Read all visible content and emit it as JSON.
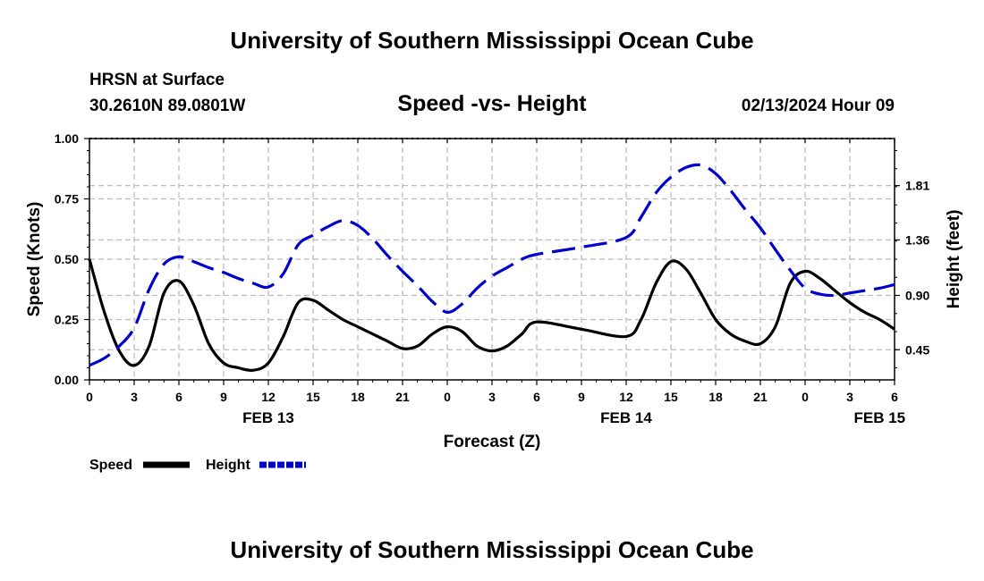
{
  "header": {
    "title": "University of Southern Mississippi Ocean Cube",
    "station": "HRSN at Surface",
    "coords": "30.2610N  89.0801W",
    "plot_title": "Speed -vs- Height",
    "run_time": "02/13/2024 Hour 09"
  },
  "footer": {
    "title": "University of Southern Mississippi Ocean Cube"
  },
  "chart_data": {
    "type": "line",
    "title": "Speed -vs- Height",
    "xlabel": "Forecast (Z)",
    "ylabel_left": "Speed (Knots)",
    "ylabel_right": "Height (feet)",
    "x_range_hours": [
      0,
      54
    ],
    "ylim_left": [
      0,
      1
    ],
    "ylim_right": [
      0.2,
      2.2
    ],
    "x_ticks": [
      {
        "h": 0,
        "label": "0"
      },
      {
        "h": 3,
        "label": "3"
      },
      {
        "h": 6,
        "label": "6"
      },
      {
        "h": 9,
        "label": "9"
      },
      {
        "h": 12,
        "label": "12"
      },
      {
        "h": 15,
        "label": "15"
      },
      {
        "h": 18,
        "label": "18"
      },
      {
        "h": 21,
        "label": "21"
      },
      {
        "h": 24,
        "label": "0"
      },
      {
        "h": 27,
        "label": "3"
      },
      {
        "h": 30,
        "label": "6"
      },
      {
        "h": 33,
        "label": "9"
      },
      {
        "h": 36,
        "label": "12"
      },
      {
        "h": 39,
        "label": "15"
      },
      {
        "h": 42,
        "label": "18"
      },
      {
        "h": 45,
        "label": "21"
      },
      {
        "h": 48,
        "label": "0"
      },
      {
        "h": 51,
        "label": "3"
      },
      {
        "h": 54,
        "label": "6"
      }
    ],
    "date_labels": [
      {
        "h": 12,
        "label": "FEB 13"
      },
      {
        "h": 36,
        "label": "FEB 14"
      },
      {
        "h": 53,
        "label": "FEB 15"
      }
    ],
    "y_left_ticks": [
      {
        "v": 0,
        "label": "0.00"
      },
      {
        "v": 0.25,
        "label": "0.25"
      },
      {
        "v": 0.5,
        "label": "0.50"
      },
      {
        "v": 0.75,
        "label": "0.75"
      },
      {
        "v": 1,
        "label": "1.00"
      }
    ],
    "y_right_ticks": [
      {
        "v": 0.45,
        "label": "0.45"
      },
      {
        "v": 0.9,
        "label": "0.90"
      },
      {
        "v": 1.36,
        "label": "1.36"
      },
      {
        "v": 1.81,
        "label": "1.81"
      }
    ],
    "series": [
      {
        "name": "Speed",
        "axis": "left",
        "color": "#000000",
        "style": "solid",
        "x": [
          0,
          1,
          2,
          3,
          4,
          5,
          6,
          7,
          8,
          9,
          10,
          11,
          12,
          13,
          14,
          15,
          16,
          17,
          18,
          19,
          20,
          21,
          22,
          23,
          24,
          25,
          26,
          27,
          28,
          29,
          30,
          33,
          36,
          37,
          38,
          39,
          40,
          41,
          42,
          43,
          44,
          45,
          46,
          47,
          48,
          49,
          50,
          51,
          52,
          53,
          54
        ],
        "values": [
          0.5,
          0.28,
          0.12,
          0.06,
          0.14,
          0.36,
          0.41,
          0.31,
          0.15,
          0.07,
          0.05,
          0.04,
          0.07,
          0.18,
          0.32,
          0.33,
          0.29,
          0.25,
          0.22,
          0.19,
          0.16,
          0.13,
          0.14,
          0.19,
          0.22,
          0.2,
          0.14,
          0.12,
          0.14,
          0.19,
          0.24,
          0.21,
          0.18,
          0.25,
          0.4,
          0.49,
          0.46,
          0.36,
          0.25,
          0.19,
          0.16,
          0.15,
          0.22,
          0.4,
          0.45,
          0.42,
          0.37,
          0.32,
          0.28,
          0.25,
          0.21
        ]
      },
      {
        "name": "Height",
        "axis": "right",
        "color": "#0000cc",
        "style": "dashed",
        "x": [
          0,
          1,
          2,
          3,
          4,
          5,
          6,
          7,
          8,
          9,
          10,
          11,
          12,
          13,
          14,
          15,
          16,
          17,
          18,
          19,
          20,
          21,
          22,
          23,
          24,
          25,
          26,
          27,
          28,
          29,
          30,
          33,
          36,
          37,
          38,
          39,
          40,
          41,
          42,
          43,
          44,
          45,
          46,
          47,
          48,
          49,
          50,
          51,
          52,
          53,
          54
        ],
        "values": [
          0.32,
          0.38,
          0.48,
          0.63,
          0.95,
          1.16,
          1.22,
          1.18,
          1.13,
          1.09,
          1.04,
          1.0,
          0.97,
          1.08,
          1.32,
          1.4,
          1.47,
          1.52,
          1.48,
          1.37,
          1.23,
          1.1,
          0.98,
          0.85,
          0.76,
          0.83,
          0.96,
          1.06,
          1.13,
          1.2,
          1.24,
          1.3,
          1.38,
          1.55,
          1.75,
          1.88,
          1.96,
          1.98,
          1.91,
          1.77,
          1.61,
          1.46,
          1.28,
          1.11,
          0.96,
          0.91,
          0.9,
          0.92,
          0.94,
          0.96,
          0.99
        ]
      }
    ],
    "legend": [
      {
        "label": "Speed",
        "color": "#000000",
        "style": "solid"
      },
      {
        "label": "Height",
        "color": "#0000cc",
        "style": "dashed"
      }
    ],
    "grid": true
  }
}
